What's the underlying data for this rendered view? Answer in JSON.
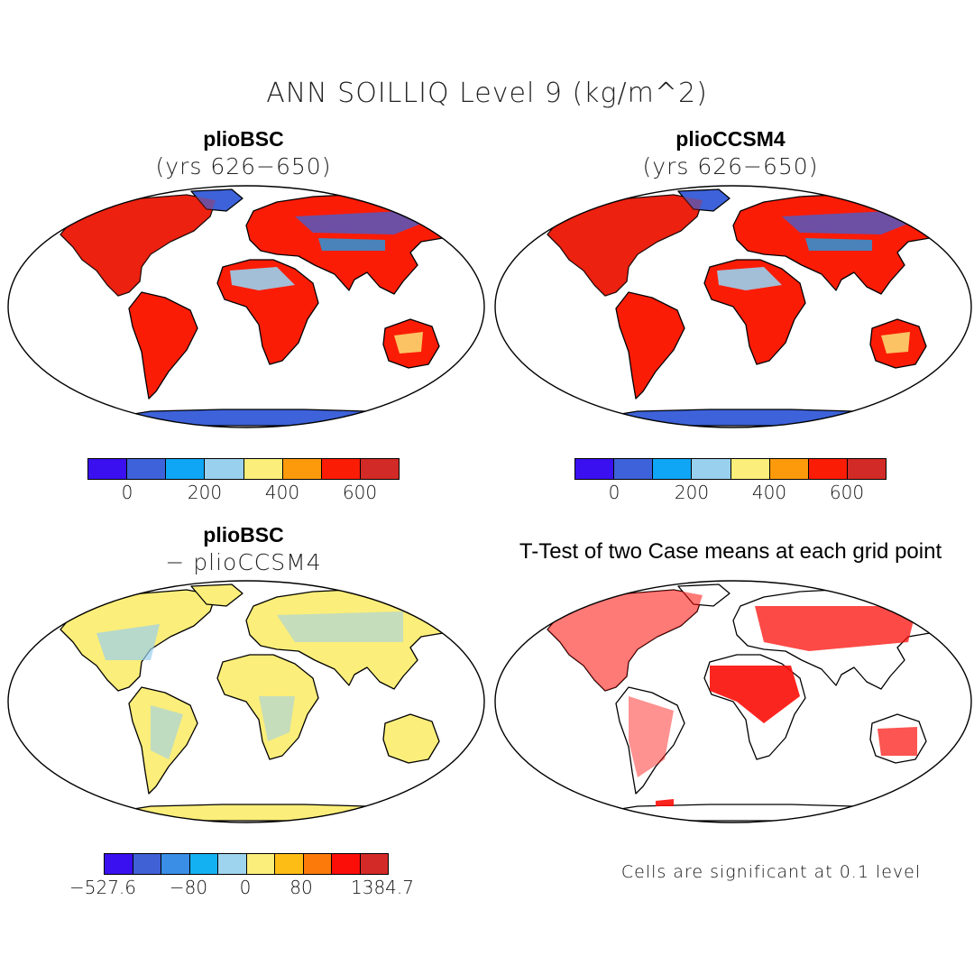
{
  "figure": {
    "title": "ANN SOILLIQ Level 9 (kg/m^2)"
  },
  "panels": [
    {
      "title": "plioBSC",
      "subtitle": "(yrs 626−650)",
      "map_theme": "red",
      "colorbar": {
        "colors": [
          "#3a10f0",
          "#3d62d9",
          "#0ea6f5",
          "#99d0ee",
          "#fbee7a",
          "#fd9a0b",
          "#fb1c06",
          "#d22a26"
        ],
        "labels": [
          "0",
          "200",
          "400",
          "600"
        ]
      }
    },
    {
      "title": "plioCCSM4",
      "subtitle": "(yrs 626−650)",
      "map_theme": "red",
      "colorbar": {
        "colors": [
          "#3a10f0",
          "#3d62d9",
          "#0ea6f5",
          "#99d0ee",
          "#fbee7a",
          "#fd9a0b",
          "#fb1c06",
          "#d22a26"
        ],
        "labels": [
          "0",
          "200",
          "400",
          "600"
        ]
      }
    },
    {
      "title": "plioBSC",
      "subtitle": "− plioCCSM4",
      "map_theme": "diff",
      "colorbar": {
        "colors": [
          "#3a10f0",
          "#4060d6",
          "#3a8ee6",
          "#14b1f2",
          "#9fd4ef",
          "#fbee7a",
          "#fdbd15",
          "#fb7a09",
          "#fb0d08",
          "#d42a27"
        ],
        "labels": [
          "−527.6",
          "−80",
          "0",
          "80",
          "1384.7"
        ]
      }
    },
    {
      "title": "T-Test of two Case means at each grid point",
      "subtitle": "",
      "map_theme": "ttest",
      "footnote": "Cells are significant at 0.1 level"
    }
  ]
}
